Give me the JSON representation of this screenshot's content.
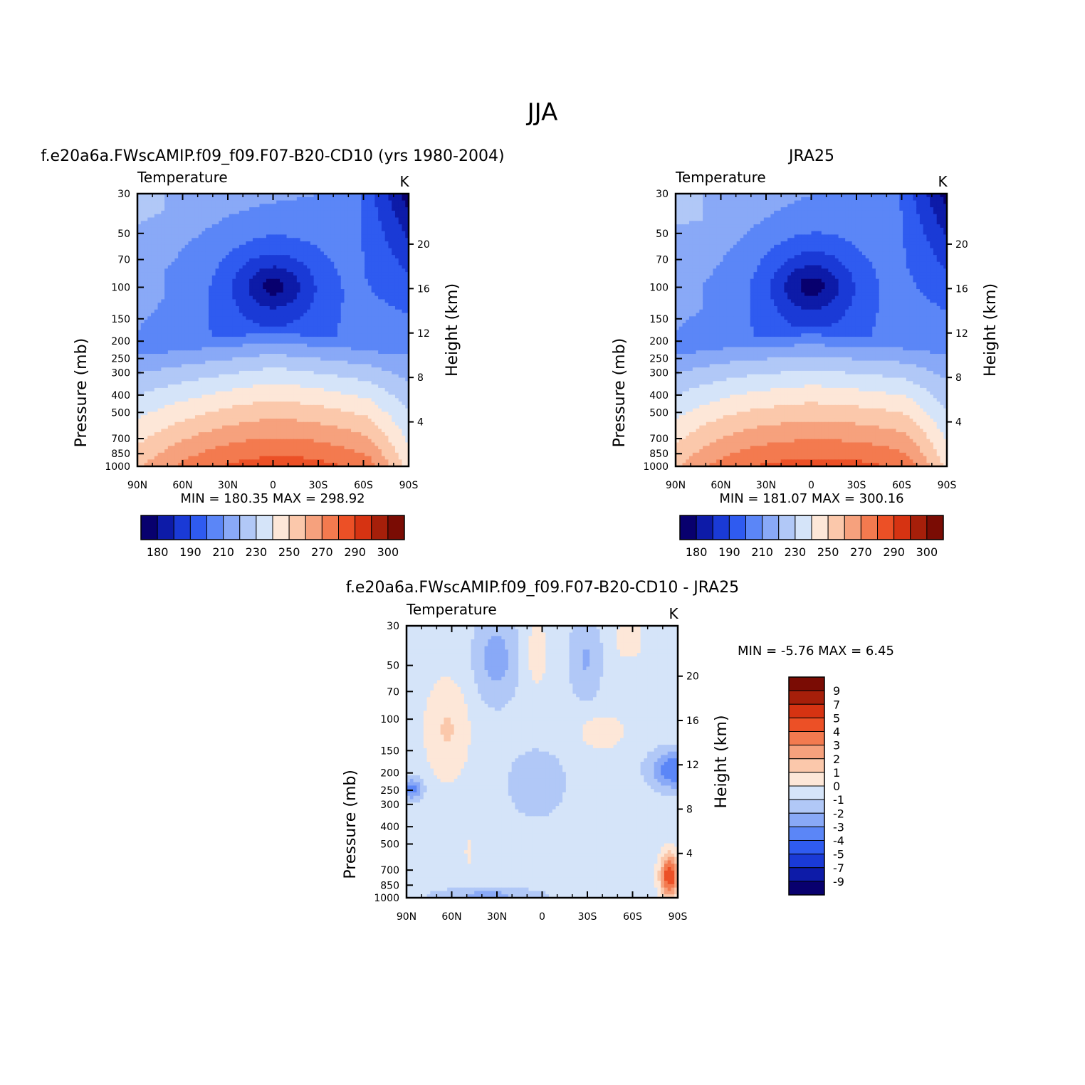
{
  "title": "JJA",
  "colors": {
    "abs": [
      "#08006e",
      "#0d1ba8",
      "#1a3ad6",
      "#2f5bf0",
      "#5b86f7",
      "#89a9f7",
      "#b1c8f7",
      "#d5e4f9",
      "#fde7d8",
      "#fbc8ab",
      "#f6a17d",
      "#f37a4f",
      "#ec5026",
      "#d63312",
      "#a61f0a",
      "#7a0c04"
    ],
    "diff": [
      "#08006e",
      "#0d1ba8",
      "#1a3ad6",
      "#2f5bf0",
      "#5b86f7",
      "#89a9f7",
      "#b1c8f7",
      "#d5e4f9",
      "#fde7d8",
      "#fbc8ab",
      "#f6a17d",
      "#f37a4f",
      "#ec5026",
      "#d63312",
      "#a61f0a",
      "#7a0c04"
    ]
  },
  "chart_data": [
    {
      "type": "heatmap",
      "id": "model",
      "title": "f.e20a6a.FWscAMIP.f09_f09.F07-B20-CD10 (yrs 1980-2004)",
      "variable": "Temperature",
      "units": "K",
      "ylabel": "Pressure (mb)",
      "ylabel_right": "Height (km)",
      "x_ticks": [
        "90N",
        "60N",
        "30N",
        "0",
        "30S",
        "60S",
        "90S"
      ],
      "y_ticks": [
        30,
        50,
        70,
        100,
        150,
        200,
        250,
        300,
        400,
        500,
        700,
        850,
        1000
      ],
      "height_ticks": [
        4,
        8,
        12,
        16,
        20
      ],
      "min_max": "MIN =  180.35   MAX =  298.92",
      "min": 180.35,
      "max": 298.92,
      "colorbar_labels": [
        "180",
        "190",
        "210",
        "230",
        "250",
        "270",
        "290",
        "300"
      ]
    },
    {
      "type": "heatmap",
      "id": "obs",
      "title": "JRA25",
      "variable": "Temperature",
      "units": "K",
      "ylabel": "Pressure (mb)",
      "ylabel_right": "Height (km)",
      "x_ticks": [
        "90N",
        "60N",
        "30N",
        "0",
        "30S",
        "60S",
        "90S"
      ],
      "y_ticks": [
        30,
        50,
        70,
        100,
        150,
        200,
        250,
        300,
        400,
        500,
        700,
        850,
        1000
      ],
      "height_ticks": [
        4,
        8,
        12,
        16,
        20
      ],
      "min_max": "MIN =  181.07   MAX =  300.16",
      "min": 181.07,
      "max": 300.16,
      "colorbar_labels": [
        "180",
        "190",
        "210",
        "230",
        "250",
        "270",
        "290",
        "300"
      ]
    },
    {
      "type": "heatmap",
      "id": "diff",
      "title": "f.e20a6a.FWscAMIP.f09_f09.F07-B20-CD10 - JRA25",
      "variable": "Temperature",
      "units": "K",
      "ylabel": "Pressure (mb)",
      "ylabel_right": "Height (km)",
      "x_ticks": [
        "90N",
        "60N",
        "30N",
        "0",
        "30S",
        "60S",
        "90S"
      ],
      "y_ticks": [
        30,
        50,
        70,
        100,
        150,
        200,
        250,
        300,
        400,
        500,
        700,
        850,
        1000
      ],
      "height_ticks": [
        4,
        8,
        12,
        16,
        20
      ],
      "min_max": "MIN =   -5.76   MAX =     6.45",
      "min": -5.76,
      "max": 6.45,
      "colorbar_labels": [
        "9",
        "7",
        "5",
        "4",
        "3",
        "2",
        "1",
        "0",
        "-1",
        "-2",
        "-3",
        "-4",
        "-5",
        "-7",
        "-9"
      ]
    }
  ]
}
